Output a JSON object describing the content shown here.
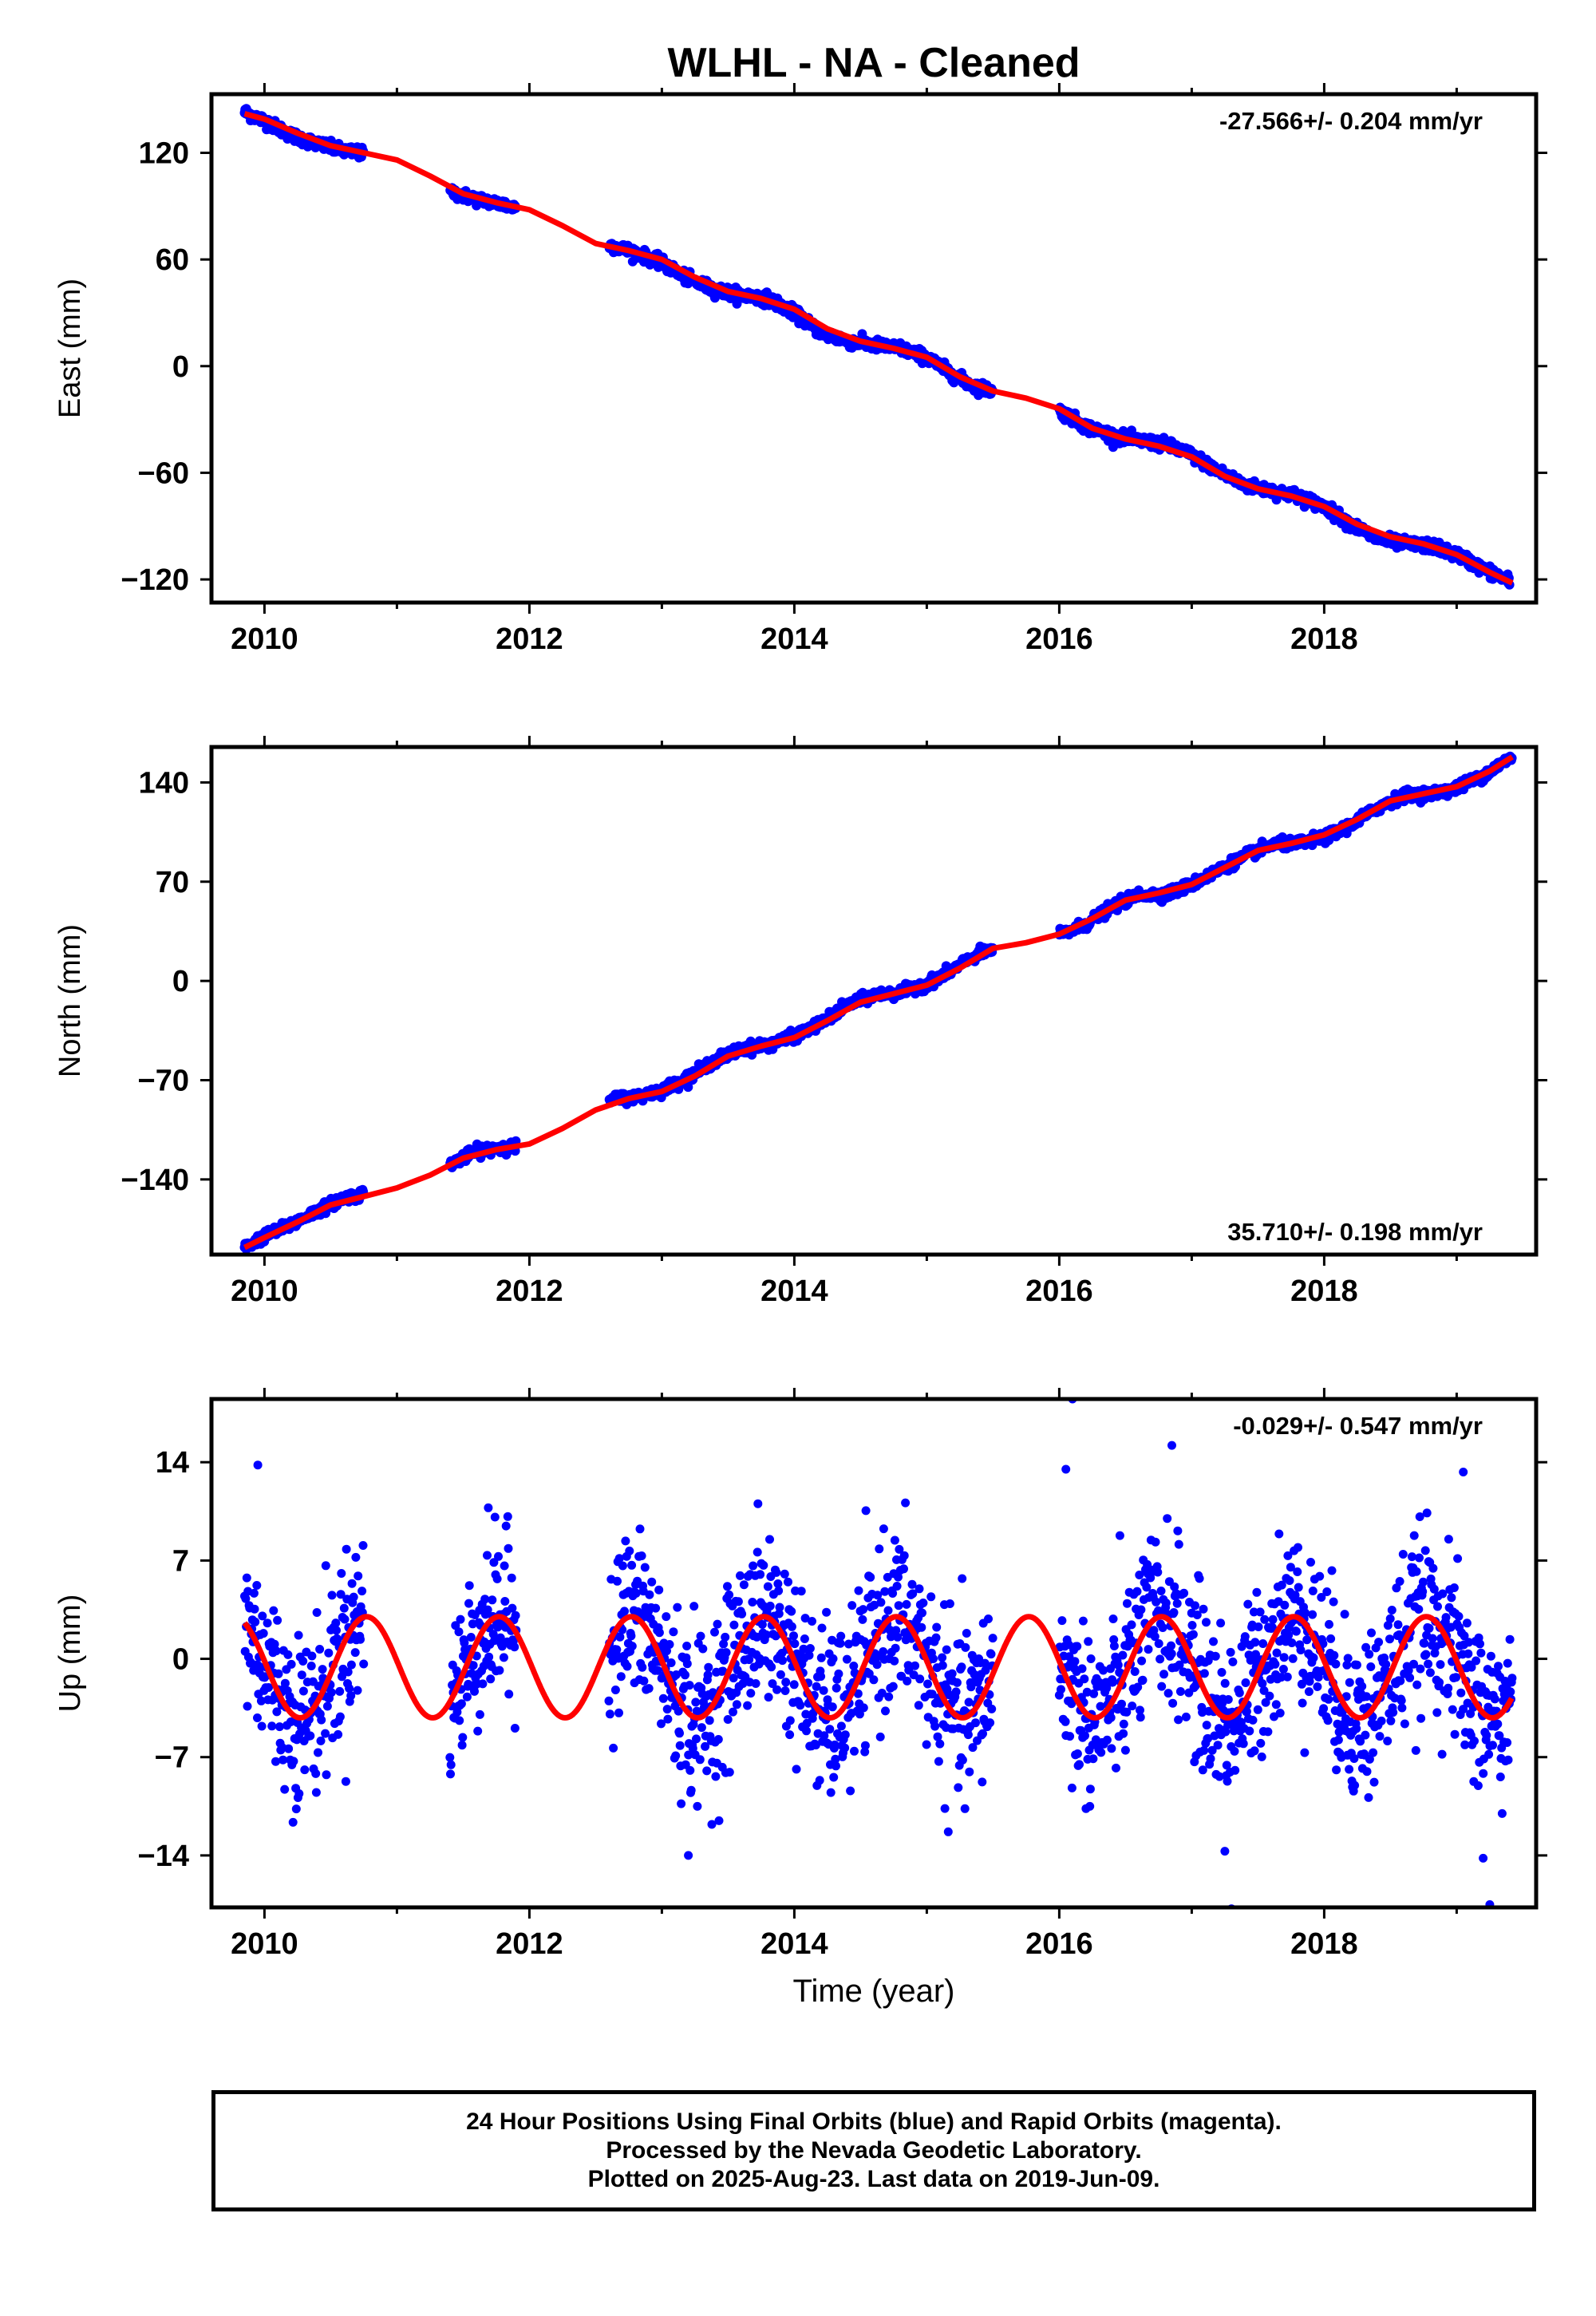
{
  "title": "WLHL  - NA - Cleaned",
  "colors": {
    "data": "#0000ff",
    "model": "#ff0000",
    "axis": "#000000"
  },
  "footer": {
    "line1": "24 Hour Positions Using Final Orbits (blue) and Rapid Orbits (magenta).",
    "line2": "Processed by the Nevada Geodetic Laboratory.",
    "line3": "Plotted on 2025-Aug-23. Last data on 2019-Jun-09."
  },
  "chart_data": [
    {
      "type": "scatter",
      "component": "East",
      "ylabel": "East (mm)",
      "xlabel": "",
      "xlim": [
        2009.6,
        2019.6
      ],
      "ylim": [
        -133,
        153
      ],
      "xticks": [
        2010,
        2012,
        2014,
        2016,
        2018
      ],
      "yticks": [
        -120,
        -60,
        0,
        60,
        120
      ],
      "rate_label": "-27.566+/- 0.204 mm/yr",
      "rate_label_position": "top-right",
      "grid": false,
      "data_gaps": [
        [
          2010.75,
          2011.4
        ],
        [
          2011.9,
          2012.6
        ],
        [
          2015.5,
          2016.0
        ]
      ],
      "series": [
        {
          "role": "daily positions",
          "color": "#0000ff",
          "points": [
            [
              2009.85,
              143
            ],
            [
              2010.0,
              138
            ],
            [
              2010.2,
              130
            ],
            [
              2010.4,
              125
            ],
            [
              2010.6,
              121
            ],
            [
              2010.72,
              120
            ],
            [
              2011.45,
              97
            ],
            [
              2011.6,
              94
            ],
            [
              2011.8,
              91
            ],
            [
              2011.9,
              89
            ],
            [
              2012.65,
              67
            ],
            [
              2012.8,
              64
            ],
            [
              2013.0,
              58
            ],
            [
              2013.2,
              49
            ],
            [
              2013.4,
              43
            ],
            [
              2013.6,
              40
            ],
            [
              2013.8,
              38
            ],
            [
              2014.0,
              30
            ],
            [
              2014.2,
              19
            ],
            [
              2014.4,
              14
            ],
            [
              2014.6,
              12
            ],
            [
              2014.8,
              10
            ],
            [
              2015.0,
              5
            ],
            [
              2015.2,
              -5
            ],
            [
              2015.35,
              -11
            ],
            [
              2015.45,
              -13
            ],
            [
              2016.0,
              -25
            ],
            [
              2016.2,
              -34
            ],
            [
              2016.4,
              -39
            ],
            [
              2016.6,
              -42
            ],
            [
              2016.8,
              -44
            ],
            [
              2017.0,
              -50
            ],
            [
              2017.2,
              -59
            ],
            [
              2017.4,
              -67
            ],
            [
              2017.6,
              -70
            ],
            [
              2017.8,
              -73
            ],
            [
              2018.0,
              -79
            ],
            [
              2018.2,
              -89
            ],
            [
              2018.4,
              -97
            ],
            [
              2018.6,
              -100
            ],
            [
              2018.8,
              -101
            ],
            [
              2019.0,
              -106
            ],
            [
              2019.2,
              -114
            ],
            [
              2019.4,
              -121
            ]
          ]
        },
        {
          "role": "model fit",
          "color": "#ff0000",
          "points": [
            [
              2009.85,
              142
            ],
            [
              2010.0,
              139
            ],
            [
              2010.25,
              131
            ],
            [
              2010.5,
              124
            ],
            [
              2010.75,
              120
            ],
            [
              2011.0,
              116
            ],
            [
              2011.25,
              107
            ],
            [
              2011.5,
              97
            ],
            [
              2011.75,
              92
            ],
            [
              2012.0,
              88
            ],
            [
              2012.25,
              79
            ],
            [
              2012.5,
              69
            ],
            [
              2012.75,
              65
            ],
            [
              2013.0,
              60
            ],
            [
              2013.25,
              50
            ],
            [
              2013.5,
              42
            ],
            [
              2013.75,
              38
            ],
            [
              2014.0,
              32
            ],
            [
              2014.25,
              21
            ],
            [
              2014.5,
              14
            ],
            [
              2014.75,
              10
            ],
            [
              2015.0,
              5
            ],
            [
              2015.25,
              -6
            ],
            [
              2015.5,
              -14
            ],
            [
              2015.75,
              -18
            ],
            [
              2016.0,
              -24
            ],
            [
              2016.25,
              -35
            ],
            [
              2016.5,
              -41
            ],
            [
              2016.75,
              -45
            ],
            [
              2017.0,
              -51
            ],
            [
              2017.25,
              -62
            ],
            [
              2017.5,
              -69
            ],
            [
              2017.75,
              -73
            ],
            [
              2018.0,
              -79
            ],
            [
              2018.25,
              -89
            ],
            [
              2018.5,
              -96
            ],
            [
              2018.75,
              -100
            ],
            [
              2019.0,
              -106
            ],
            [
              2019.25,
              -116
            ],
            [
              2019.42,
              -122
            ]
          ]
        }
      ]
    },
    {
      "type": "scatter",
      "component": "North",
      "ylabel": "North (mm)",
      "xlabel": "",
      "xlim": [
        2009.6,
        2019.6
      ],
      "ylim": [
        -193,
        165
      ],
      "xticks": [
        2010,
        2012,
        2014,
        2016,
        2018
      ],
      "yticks": [
        -140,
        -70,
        0,
        70,
        140
      ],
      "rate_label": "35.710+/- 0.198 mm/yr",
      "rate_label_position": "bottom-right",
      "grid": false,
      "data_gaps": [
        [
          2010.75,
          2011.4
        ],
        [
          2011.9,
          2012.6
        ],
        [
          2015.5,
          2016.0
        ]
      ],
      "series": [
        {
          "role": "daily positions",
          "color": "#0000ff",
          "points": [
            [
              2009.85,
              -188
            ],
            [
              2010.0,
              -180
            ],
            [
              2010.2,
              -172
            ],
            [
              2010.4,
              -162
            ],
            [
              2010.6,
              -153
            ],
            [
              2010.72,
              -151
            ],
            [
              2011.45,
              -127
            ],
            [
              2011.6,
              -120
            ],
            [
              2011.8,
              -117
            ],
            [
              2011.9,
              -117
            ],
            [
              2012.65,
              -83
            ],
            [
              2012.8,
              -82
            ],
            [
              2013.0,
              -77
            ],
            [
              2013.2,
              -68
            ],
            [
              2013.4,
              -56
            ],
            [
              2013.6,
              -48
            ],
            [
              2013.8,
              -45
            ],
            [
              2014.0,
              -39
            ],
            [
              2014.2,
              -30
            ],
            [
              2014.4,
              -17
            ],
            [
              2014.6,
              -10
            ],
            [
              2014.8,
              -8
            ],
            [
              2015.0,
              -2
            ],
            [
              2015.2,
              8
            ],
            [
              2015.35,
              17
            ],
            [
              2015.45,
              21
            ],
            [
              2016.0,
              32
            ],
            [
              2016.2,
              40
            ],
            [
              2016.4,
              52
            ],
            [
              2016.6,
              61
            ],
            [
              2016.8,
              61
            ],
            [
              2017.0,
              68
            ],
            [
              2017.2,
              78
            ],
            [
              2017.4,
              88
            ],
            [
              2017.6,
              96
            ],
            [
              2017.8,
              97
            ],
            [
              2018.0,
              101
            ],
            [
              2018.2,
              110
            ],
            [
              2018.4,
              122
            ],
            [
              2018.6,
              131
            ],
            [
              2018.8,
              132
            ],
            [
              2019.0,
              136
            ],
            [
              2019.2,
              145
            ],
            [
              2019.42,
              158
            ]
          ]
        },
        {
          "role": "model fit",
          "color": "#ff0000",
          "points": [
            [
              2009.85,
              -188
            ],
            [
              2010.0,
              -181
            ],
            [
              2010.25,
              -170
            ],
            [
              2010.5,
              -158
            ],
            [
              2010.75,
              -152
            ],
            [
              2011.0,
              -146
            ],
            [
              2011.25,
              -137
            ],
            [
              2011.5,
              -125
            ],
            [
              2011.75,
              -119
            ],
            [
              2012.0,
              -115
            ],
            [
              2012.25,
              -104
            ],
            [
              2012.5,
              -91
            ],
            [
              2012.75,
              -83
            ],
            [
              2013.0,
              -78
            ],
            [
              2013.25,
              -67
            ],
            [
              2013.5,
              -53
            ],
            [
              2013.75,
              -46
            ],
            [
              2014.0,
              -40
            ],
            [
              2014.25,
              -28
            ],
            [
              2014.5,
              -15
            ],
            [
              2014.75,
              -9
            ],
            [
              2015.0,
              -3
            ],
            [
              2015.25,
              9
            ],
            [
              2015.5,
              23
            ],
            [
              2015.75,
              27
            ],
            [
              2016.0,
              33
            ],
            [
              2016.25,
              44
            ],
            [
              2016.5,
              57
            ],
            [
              2016.75,
              62
            ],
            [
              2017.0,
              68
            ],
            [
              2017.25,
              80
            ],
            [
              2017.5,
              92
            ],
            [
              2017.75,
              97
            ],
            [
              2018.0,
              103
            ],
            [
              2018.25,
              114
            ],
            [
              2018.5,
              127
            ],
            [
              2018.75,
              132
            ],
            [
              2019.0,
              137
            ],
            [
              2019.25,
              148
            ],
            [
              2019.42,
              158
            ]
          ]
        }
      ]
    },
    {
      "type": "scatter",
      "component": "Up",
      "ylabel": "Up (mm)",
      "xlabel": "Time (year)",
      "xlim": [
        2009.6,
        2019.6
      ],
      "ylim": [
        -17.7,
        18.5
      ],
      "xticks": [
        2010,
        2012,
        2014,
        2016,
        2018
      ],
      "yticks": [
        -14,
        -7,
        0,
        7,
        14
      ],
      "rate_label": "-0.029+/- 0.547 mm/yr",
      "rate_label_position": "top-right",
      "grid": false,
      "data_segments": [
        [
          2009.85,
          2010.75
        ],
        [
          2011.4,
          2011.9
        ],
        [
          2012.6,
          2015.5
        ],
        [
          2016.0,
          2019.42
        ]
      ],
      "seasonal_model": {
        "period_years": 1.0,
        "amplitude_mm": 3.6,
        "offset_mm": -0.6,
        "phase_peak_year_fraction": 0.77,
        "x_range": [
          2009.85,
          2019.42
        ]
      },
      "scatter_spread_mm": 3.0,
      "outliers": [
        [
          2016.1,
          18.5
        ],
        [
          2016.05,
          13.5
        ],
        [
          2016.85,
          15.2
        ],
        [
          2019.05,
          13.3
        ],
        [
          2009.95,
          13.8
        ],
        [
          2017.3,
          -17.8
        ],
        [
          2019.25,
          -17.5
        ],
        [
          2013.2,
          -14.0
        ],
        [
          2017.25,
          -13.7
        ],
        [
          2019.2,
          -14.2
        ]
      ],
      "series": [
        {
          "role": "daily positions",
          "color": "#0000ff"
        },
        {
          "role": "model fit",
          "color": "#ff0000"
        }
      ]
    }
  ]
}
